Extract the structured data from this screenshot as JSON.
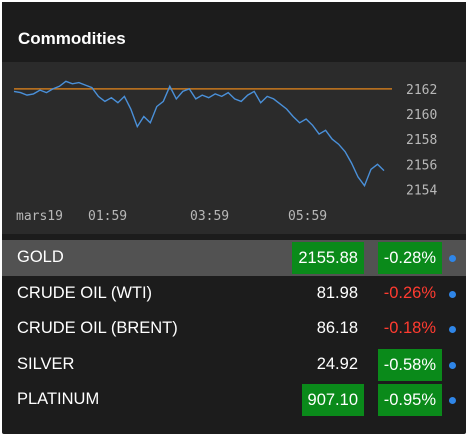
{
  "widget": {
    "title": "Commodities"
  },
  "chart": {
    "line_color": "#4a90d9",
    "reference_line_color": "#c8781e",
    "reference_value": 2162,
    "y_ticks": [
      "2162",
      "2160",
      "2158",
      "2156",
      "2154"
    ],
    "x_ticks": [
      "mars19",
      "01:59",
      "03:59",
      "05:59"
    ],
    "y_range": [
      2153,
      2163.5
    ]
  },
  "chart_data": {
    "type": "line",
    "xlabel": "",
    "ylabel": "",
    "x_ticks": [
      "mars19",
      "01:59",
      "03:59",
      "05:59"
    ],
    "y_ticks": [
      2162,
      2160,
      2158,
      2156,
      2154
    ],
    "reference_line": 2162,
    "series": [
      {
        "values": [
          2161.8,
          2161.7,
          2161.5,
          2161.6,
          2161.9,
          2161.7,
          2162.0,
          2162.2,
          2162.6,
          2162.4,
          2162.5,
          2162.3,
          2162.1,
          2161.4,
          2161.0,
          2161.3,
          2160.9,
          2161.4,
          2160.4,
          2159.0,
          2159.8,
          2159.3,
          2160.6,
          2161.0,
          2162.2,
          2161.2,
          2161.8,
          2162.0,
          2161.2,
          2161.5,
          2161.3,
          2161.6,
          2161.4,
          2161.7,
          2161.2,
          2161.0,
          2161.5,
          2161.8,
          2160.9,
          2161.4,
          2161.2,
          2160.8,
          2160.4,
          2159.8,
          2159.3,
          2159.6,
          2159.1,
          2158.4,
          2158.7,
          2158.0,
          2157.6,
          2157.0,
          2156.1,
          2155.0,
          2154.3,
          2155.6,
          2156.0,
          2155.5
        ]
      }
    ]
  },
  "rows": [
    {
      "name": "GOLD",
      "price": "2155.88",
      "change": "-0.28%"
    },
    {
      "name": "CRUDE OIL (WTI)",
      "price": "81.98",
      "change": "-0.26%"
    },
    {
      "name": "CRUDE OIL (BRENT)",
      "price": "86.18",
      "change": "-0.18%"
    },
    {
      "name": "SILVER",
      "price": "24.92",
      "change": "-0.58%"
    },
    {
      "name": "PLATINUM",
      "price": "907.10",
      "change": "-0.95%"
    }
  ],
  "colors": {
    "highlight_green": "#0a8a1a",
    "negative_red": "#ff3b30",
    "dot_blue": "#2f86e8",
    "selected_row": "#525252"
  }
}
